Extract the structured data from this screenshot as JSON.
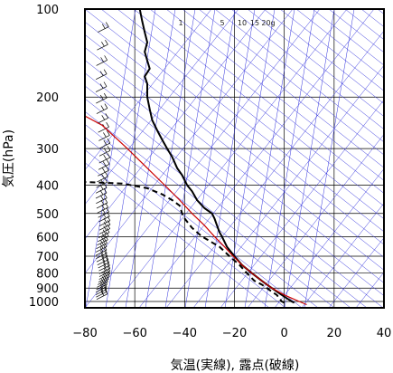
{
  "chart_data": {
    "type": "line",
    "title": "",
    "xlabel": "気温(実線), 露点(破線)",
    "ylabel": "気圧(hPa)",
    "xlim": [
      -80,
      40
    ],
    "ylim": [
      1050,
      100
    ],
    "y_scale": "log",
    "x_ticks": [
      "−80",
      "−60",
      "−40",
      "−20",
      "0",
      "20",
      "40"
    ],
    "x_tick_values": [
      -80,
      -60,
      -40,
      -20,
      0,
      20,
      40
    ],
    "y_ticks": [
      "100",
      "200",
      "300",
      "400",
      "500",
      "600",
      "700",
      "800",
      "900",
      "1000"
    ],
    "y_tick_values": [
      100,
      200,
      300,
      400,
      500,
      600,
      700,
      800,
      900,
      1000
    ],
    "mixing_ratio_labels": [
      "1",
      "5",
      "10",
      "15",
      "20g"
    ],
    "grid": true,
    "series": [
      {
        "style": "solid",
        "color": "#000000",
        "points": [
          [
            1010,
            4
          ],
          [
            1000,
            3
          ],
          [
            975,
            1
          ],
          [
            950,
            -1
          ],
          [
            925,
            -3
          ],
          [
            900,
            -5
          ],
          [
            875,
            -7
          ],
          [
            850,
            -9
          ],
          [
            800,
            -13
          ],
          [
            750,
            -17
          ],
          [
            700,
            -20
          ],
          [
            650,
            -23
          ],
          [
            600,
            -25
          ],
          [
            580,
            -26
          ],
          [
            550,
            -27
          ],
          [
            520,
            -28
          ],
          [
            500,
            -29
          ],
          [
            480,
            -32
          ],
          [
            450,
            -35
          ],
          [
            420,
            -37
          ],
          [
            400,
            -39
          ],
          [
            370,
            -41
          ],
          [
            350,
            -43
          ],
          [
            320,
            -45
          ],
          [
            300,
            -47
          ],
          [
            280,
            -49
          ],
          [
            260,
            -51
          ],
          [
            240,
            -53
          ],
          [
            220,
            -54
          ],
          [
            200,
            -55
          ],
          [
            180,
            -55
          ],
          [
            170,
            -56
          ],
          [
            160,
            -54
          ],
          [
            150,
            -55
          ],
          [
            140,
            -56
          ],
          [
            130,
            -55
          ],
          [
            120,
            -56
          ],
          [
            110,
            -57
          ],
          [
            100,
            -58
          ]
        ]
      },
      {
        "style": "dashed",
        "color": "#000000",
        "points": [
          [
            1010,
            0
          ],
          [
            1000,
            -1
          ],
          [
            975,
            -2
          ],
          [
            950,
            -3
          ],
          [
            925,
            -5
          ],
          [
            900,
            -7
          ],
          [
            875,
            -9
          ],
          [
            850,
            -12
          ],
          [
            800,
            -15
          ],
          [
            750,
            -18
          ],
          [
            700,
            -22
          ],
          [
            650,
            -26
          ],
          [
            600,
            -33
          ],
          [
            580,
            -35
          ],
          [
            560,
            -37
          ],
          [
            520,
            -40
          ],
          [
            500,
            -41
          ],
          [
            470,
            -42
          ],
          [
            450,
            -45
          ],
          [
            430,
            -49
          ],
          [
            410,
            -55
          ],
          [
            395,
            -65
          ],
          [
            392,
            -75
          ],
          [
            390,
            -82
          ]
        ]
      },
      {
        "style": "solid",
        "color": "#cc0000",
        "points": [
          [
            1025,
            9
          ],
          [
            1000,
            6
          ],
          [
            950,
            0
          ],
          [
            900,
            -5
          ],
          [
            850,
            -9
          ],
          [
            800,
            -13
          ],
          [
            750,
            -17
          ],
          [
            700,
            -20.5
          ],
          [
            650,
            -24
          ],
          [
            600,
            -28
          ],
          [
            550,
            -32
          ],
          [
            500,
            -37
          ],
          [
            450,
            -42
          ],
          [
            400,
            -48
          ],
          [
            350,
            -55
          ],
          [
            300,
            -63
          ],
          [
            250,
            -73
          ],
          [
            232,
            -80
          ]
        ]
      }
    ]
  }
}
